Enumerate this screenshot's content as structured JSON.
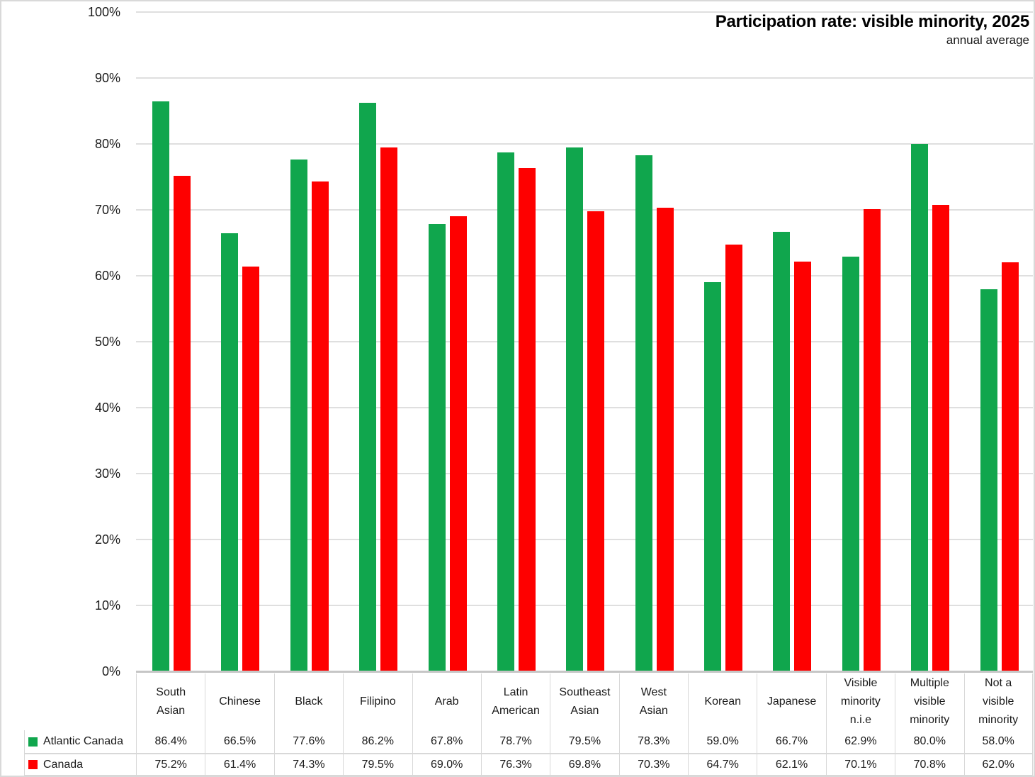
{
  "title": "Participation rate: visible minority, 2025",
  "subtitle": "annual average",
  "colors": {
    "atlantic_canada_series": "#10A64D",
    "canada_series": "#FE0000",
    "gridline": "#DFDFDF",
    "axis_line": "#C6C6C6",
    "table_border": "#D8D8D8",
    "text": "#1a1a1a"
  },
  "chart_data": {
    "type": "bar",
    "title": "Participation rate: visible minority, 2025",
    "subtitle": "annual average",
    "categories": [
      "South Asian",
      "Chinese",
      "Black",
      "Filipino",
      "Arab",
      "Latin American",
      "Southeast Asian",
      "West Asian",
      "Korean",
      "Japanese",
      "Visible minority n.i.e",
      "Multiple visible minority",
      "Not a visible minority"
    ],
    "category_labels_display": [
      "South\nAsian",
      "Chinese",
      "Black",
      "Filipino",
      "Arab",
      "Latin\nAmerican",
      "Southeast\nAsian",
      "West\nAsian",
      "Korean",
      "Japanese",
      "Visible\nminority\nn.i.e",
      "Multiple\nvisible\nminority",
      "Not a\nvisible\nminority"
    ],
    "series": [
      {
        "name": "Atlantic Canada",
        "color": "#10A64D",
        "values": [
          86.4,
          66.5,
          77.6,
          86.2,
          67.8,
          78.7,
          79.5,
          78.3,
          59.0,
          66.7,
          62.9,
          80.0,
          58.0
        ],
        "display": [
          "86.4%",
          "66.5%",
          "77.6%",
          "86.2%",
          "67.8%",
          "78.7%",
          "79.5%",
          "78.3%",
          "59.0%",
          "66.7%",
          "62.9%",
          "80.0%",
          "58.0%"
        ]
      },
      {
        "name": "Canada",
        "color": "#FE0000",
        "values": [
          75.2,
          61.4,
          74.3,
          79.5,
          69.0,
          76.3,
          69.8,
          70.3,
          64.7,
          62.1,
          70.1,
          70.8,
          62.0
        ],
        "display": [
          "75.2%",
          "61.4%",
          "74.3%",
          "79.5%",
          "69.0%",
          "76.3%",
          "69.8%",
          "70.3%",
          "64.7%",
          "62.1%",
          "70.1%",
          "70.8%",
          "62.0%"
        ]
      }
    ],
    "ylabel": "",
    "xlabel": "",
    "ylim": [
      0,
      100
    ],
    "ytick_step": 10,
    "ytick_labels": [
      "0%",
      "10%",
      "20%",
      "30%",
      "40%",
      "50%",
      "60%",
      "70%",
      "80%",
      "90%",
      "100%"
    ],
    "grid": true,
    "legend_position": "data-table-left",
    "value_format": "one-decimal-percent"
  }
}
